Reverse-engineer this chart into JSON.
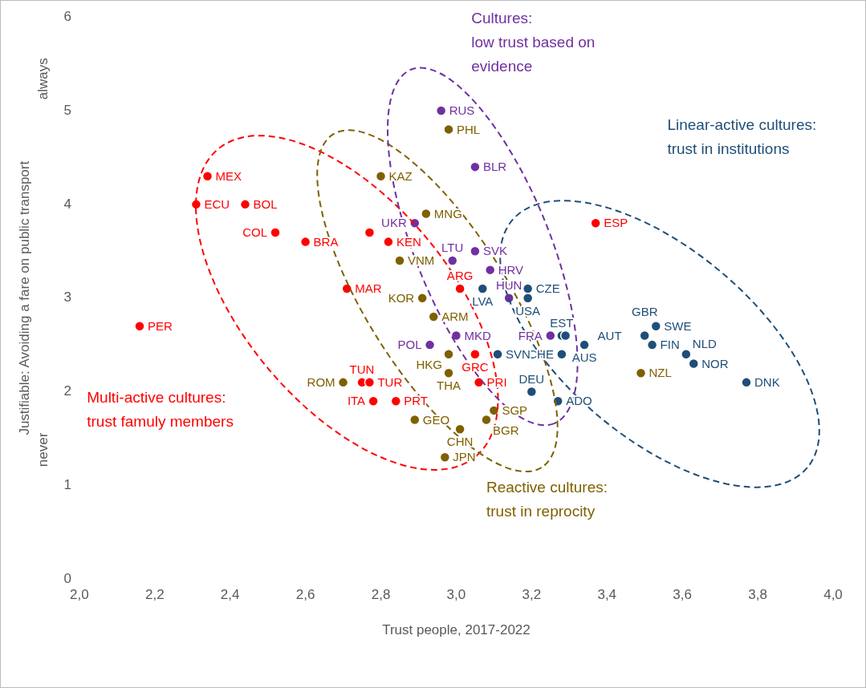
{
  "chart_data": {
    "type": "scatter",
    "xlabel": "Trust people, 2017-2022",
    "ylabel": "Justifiable: Avoiding a fare on public transport",
    "xlim": [
      2,
      4
    ],
    "xticks": [
      {
        "value": 2,
        "label": "2,0"
      },
      {
        "value": 2.2,
        "label": "2,2"
      },
      {
        "value": 2.4,
        "label": "2,4"
      },
      {
        "value": 2.6,
        "label": "2,6"
      },
      {
        "value": 2.8,
        "label": "2,8"
      },
      {
        "value": 3,
        "label": "3,0"
      },
      {
        "value": 3.2,
        "label": "3,2"
      },
      {
        "value": 3.4,
        "label": "3,4"
      },
      {
        "value": 3.6,
        "label": "3,6"
      },
      {
        "value": 3.8,
        "label": "3,8"
      },
      {
        "value": 4,
        "label": "4,0"
      }
    ],
    "ylim": [
      0,
      6
    ],
    "yticks": [
      0,
      1,
      2,
      3,
      4,
      5,
      6
    ],
    "grid": false,
    "legend": false,
    "marker": "circle",
    "series": [
      {
        "color": "#ff0000",
        "x": [
          2.34,
          2.31,
          2.44,
          2.52,
          2.6,
          2.77,
          2.82,
          2.71,
          2.16,
          3.01,
          3.37,
          3.05,
          2.75,
          2.77,
          2.78,
          2.84,
          3.06
        ],
        "values": [
          4.3,
          4.0,
          4.0,
          3.7,
          3.6,
          3.7,
          3.6,
          3.1,
          2.7,
          3.1,
          3.8,
          2.4,
          2.1,
          2.1,
          1.9,
          1.9,
          2.1
        ]
      },
      {
        "color": "#7f6000",
        "x": [
          2.98,
          2.8,
          2.92,
          2.85,
          2.91,
          2.94,
          2.98,
          2.98,
          2.7,
          2.89,
          3.01,
          3.08,
          3.1,
          2.97,
          3.49
        ],
        "values": [
          4.8,
          4.3,
          3.9,
          3.4,
          3.0,
          2.8,
          2.4,
          2.2,
          2.1,
          1.7,
          1.6,
          1.7,
          1.8,
          1.3,
          2.2
        ]
      },
      {
        "color": "#7030a0",
        "x": [
          2.96,
          3.05,
          2.89,
          3.05,
          2.99,
          3.09,
          3.14,
          3.0,
          2.93,
          3.25
        ],
        "values": [
          5.0,
          4.4,
          3.8,
          3.5,
          3.4,
          3.3,
          3.0,
          2.6,
          2.5,
          2.6
        ]
      },
      {
        "color": "#1f4e79",
        "x": [
          3.07,
          3.19,
          3.19,
          3.28,
          3.29,
          3.34,
          3.28,
          3.11,
          3.2,
          3.27,
          3.53,
          3.5,
          3.52,
          3.61,
          3.63,
          3.77
        ],
        "values": [
          3.1,
          3.1,
          3.0,
          2.6,
          2.6,
          2.5,
          2.4,
          2.4,
          2.0,
          1.9,
          2.7,
          2.6,
          2.5,
          2.4,
          2.3,
          2.1
        ]
      }
    ],
    "annotations": [
      "Multi-active cultures:\ntrust famuly members",
      "Reactive cultures:\ntrust in reprocity",
      "Cultures:\nlow trust based on\nevidence",
      "Linear-active cultures:\ntrust in institutions",
      "never",
      "always",
      {
        "text": "MEX",
        "x": 2.34,
        "y": 4.3
      },
      {
        "text": "ECU",
        "x": 2.31,
        "y": 4.0
      },
      {
        "text": "BOL",
        "x": 2.44,
        "y": 4.0
      },
      {
        "text": "COL",
        "x": 2.52,
        "y": 3.7
      },
      {
        "text": "BRA",
        "x": 2.6,
        "y": 3.6
      },
      {
        "text": "KEN",
        "x": 2.82,
        "y": 3.6
      },
      {
        "text": "MAR",
        "x": 2.71,
        "y": 3.1
      },
      {
        "text": "PER",
        "x": 2.16,
        "y": 2.7
      },
      {
        "text": "ARG",
        "x": 3.01,
        "y": 3.1
      },
      {
        "text": "ESP",
        "x": 3.37,
        "y": 3.8
      },
      {
        "text": "GRC",
        "x": 3.05,
        "y": 2.4
      },
      {
        "text": "TUN",
        "x": 2.75,
        "y": 2.1
      },
      {
        "text": "TUR",
        "x": 2.77,
        "y": 2.1
      },
      {
        "text": "ITA",
        "x": 2.78,
        "y": 1.9
      },
      {
        "text": "PRT",
        "x": 2.84,
        "y": 1.9
      },
      {
        "text": "PRI",
        "x": 3.06,
        "y": 2.1
      },
      {
        "text": "PHL",
        "x": 2.98,
        "y": 4.8
      },
      {
        "text": "KAZ",
        "x": 2.8,
        "y": 4.3
      },
      {
        "text": "MNG",
        "x": 2.92,
        "y": 3.9
      },
      {
        "text": "VNM",
        "x": 2.85,
        "y": 3.4
      },
      {
        "text": "KOR",
        "x": 2.91,
        "y": 3.0
      },
      {
        "text": "ARM",
        "x": 2.94,
        "y": 2.8
      },
      {
        "text": "HKG",
        "x": 2.98,
        "y": 2.4
      },
      {
        "text": "THA",
        "x": 2.98,
        "y": 2.2
      },
      {
        "text": "ROM",
        "x": 2.7,
        "y": 2.1
      },
      {
        "text": "GEO",
        "x": 2.89,
        "y": 1.7
      },
      {
        "text": "CHN",
        "x": 3.01,
        "y": 1.6
      },
      {
        "text": "BGR",
        "x": 3.08,
        "y": 1.7
      },
      {
        "text": "SGP",
        "x": 3.1,
        "y": 1.8
      },
      {
        "text": "JPN",
        "x": 2.97,
        "y": 1.3
      },
      {
        "text": "NZL",
        "x": 3.49,
        "y": 2.2
      },
      {
        "text": "RUS",
        "x": 2.96,
        "y": 5.0
      },
      {
        "text": "BLR",
        "x": 3.05,
        "y": 4.4
      },
      {
        "text": "UKR",
        "x": 2.89,
        "y": 3.8
      },
      {
        "text": "SVK",
        "x": 3.05,
        "y": 3.5
      },
      {
        "text": "LTU",
        "x": 2.99,
        "y": 3.4
      },
      {
        "text": "HRV",
        "x": 3.09,
        "y": 3.3
      },
      {
        "text": "HUN",
        "x": 3.14,
        "y": 3.0
      },
      {
        "text": "MKD",
        "x": 3.0,
        "y": 2.6
      },
      {
        "text": "POL",
        "x": 2.93,
        "y": 2.5
      },
      {
        "text": "FRA",
        "x": 3.25,
        "y": 2.6
      },
      {
        "text": "LVA",
        "x": 3.07,
        "y": 3.1
      },
      {
        "text": "CZE",
        "x": 3.19,
        "y": 3.1
      },
      {
        "text": "USA",
        "x": 3.19,
        "y": 3.0
      },
      {
        "text": "EST",
        "x": 3.28,
        "y": 2.6
      },
      {
        "text": "AUT",
        "x": 3.29,
        "y": 2.6
      },
      {
        "text": "AUS",
        "x": 3.34,
        "y": 2.5
      },
      {
        "text": "CHE",
        "x": 3.28,
        "y": 2.4
      },
      {
        "text": "SVN",
        "x": 3.11,
        "y": 2.4
      },
      {
        "text": "DEU",
        "x": 3.2,
        "y": 2.0
      },
      {
        "text": "ADO",
        "x": 3.27,
        "y": 1.9
      },
      {
        "text": "SWE",
        "x": 3.53,
        "y": 2.7
      },
      {
        "text": "GBR",
        "x": 3.5,
        "y": 2.6
      },
      {
        "text": "FIN",
        "x": 3.52,
        "y": 2.5
      },
      {
        "text": "NLD",
        "x": 3.61,
        "y": 2.4
      },
      {
        "text": "NOR",
        "x": 3.63,
        "y": 2.3
      },
      {
        "text": "DNK",
        "x": 3.77,
        "y": 2.1
      }
    ]
  }
}
